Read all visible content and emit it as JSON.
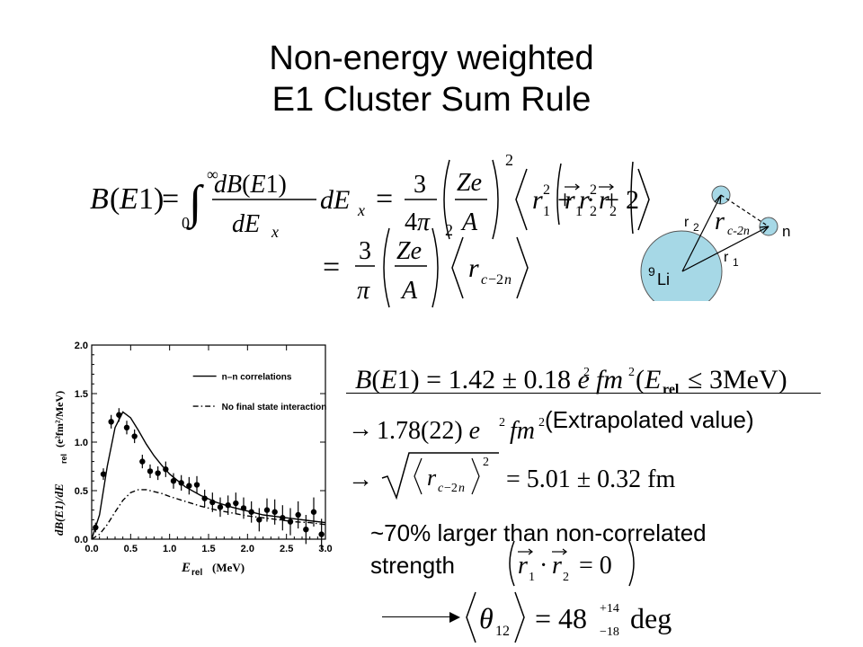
{
  "title": {
    "line1": "Non-energy weighted",
    "line2": "E1 Cluster Sum Rule"
  },
  "diagram": {
    "core_label_sup": "9",
    "core_label": "Li",
    "r1": "r",
    "r1_sub": "1",
    "r2": "r",
    "r2_sub": "2",
    "rc": "r",
    "rc_sub": "c-2n",
    "n_label": "n"
  },
  "text": {
    "extrapolated": "(Extrapolated value)",
    "larger_line1": "~70% larger than non-correlated",
    "larger_line2": "strength"
  },
  "chart_data": {
    "type": "scatter",
    "xlabel": "E",
    "xlabel_sub": "rel",
    "xlabel_unit": "(MeV)",
    "ylabel": "dB(E1)/dE",
    "ylabel_sub": "rel",
    "ylabel_unit": "(e²fm²/MeV)",
    "xlim": [
      0.0,
      3.0
    ],
    "ylim": [
      0.0,
      2.0
    ],
    "x_ticks": [
      "0.0",
      "0.5",
      "1.0",
      "1.5",
      "2.0",
      "2.5",
      "3.0"
    ],
    "y_ticks": [
      "0.0",
      "0.5",
      "1.0",
      "1.5",
      "2.0"
    ],
    "legend": [
      "n–n correlations",
      "No final state interaction"
    ],
    "legend_position": "top-right",
    "series": [
      {
        "name": "n–n correlations",
        "style": "solid",
        "x": [
          0.0,
          0.1,
          0.2,
          0.3,
          0.4,
          0.5,
          0.6,
          0.7,
          0.8,
          0.9,
          1.0,
          1.2,
          1.4,
          1.6,
          1.8,
          2.0,
          2.2,
          2.4,
          2.6,
          2.8,
          3.0
        ],
        "y": [
          0.0,
          0.25,
          0.75,
          1.15,
          1.31,
          1.25,
          1.12,
          0.98,
          0.86,
          0.76,
          0.67,
          0.54,
          0.45,
          0.38,
          0.33,
          0.29,
          0.25,
          0.23,
          0.21,
          0.19,
          0.17
        ]
      },
      {
        "name": "No final state interaction",
        "style": "dash-dot",
        "x": [
          0.0,
          0.1,
          0.2,
          0.3,
          0.4,
          0.5,
          0.6,
          0.7,
          0.8,
          0.9,
          1.0,
          1.2,
          1.4,
          1.6,
          1.8,
          2.0,
          2.2,
          2.4,
          2.6,
          2.8,
          3.0
        ],
        "y": [
          0.0,
          0.05,
          0.15,
          0.28,
          0.4,
          0.48,
          0.51,
          0.51,
          0.49,
          0.47,
          0.44,
          0.39,
          0.34,
          0.3,
          0.27,
          0.24,
          0.22,
          0.2,
          0.18,
          0.17,
          0.15
        ]
      },
      {
        "name": "data",
        "style": "points",
        "x": [
          0.05,
          0.15,
          0.25,
          0.35,
          0.45,
          0.55,
          0.65,
          0.75,
          0.85,
          0.95,
          1.05,
          1.15,
          1.25,
          1.35,
          1.45,
          1.55,
          1.65,
          1.75,
          1.85,
          1.95,
          2.05,
          2.15,
          2.25,
          2.35,
          2.45,
          2.55,
          2.65,
          2.75,
          2.85,
          2.95
        ],
        "y": [
          0.12,
          0.67,
          1.21,
          1.28,
          1.15,
          1.06,
          0.8,
          0.7,
          0.68,
          0.72,
          0.6,
          0.58,
          0.55,
          0.56,
          0.42,
          0.38,
          0.33,
          0.35,
          0.37,
          0.32,
          0.28,
          0.2,
          0.3,
          0.28,
          0.22,
          0.18,
          0.25,
          0.1,
          0.28,
          0.05
        ],
        "err": [
          0.05,
          0.06,
          0.07,
          0.07,
          0.07,
          0.07,
          0.07,
          0.07,
          0.07,
          0.08,
          0.08,
          0.08,
          0.09,
          0.09,
          0.09,
          0.1,
          0.1,
          0.1,
          0.11,
          0.11,
          0.11,
          0.12,
          0.12,
          0.13,
          0.13,
          0.14,
          0.14,
          0.15,
          0.15,
          0.16
        ]
      }
    ]
  }
}
